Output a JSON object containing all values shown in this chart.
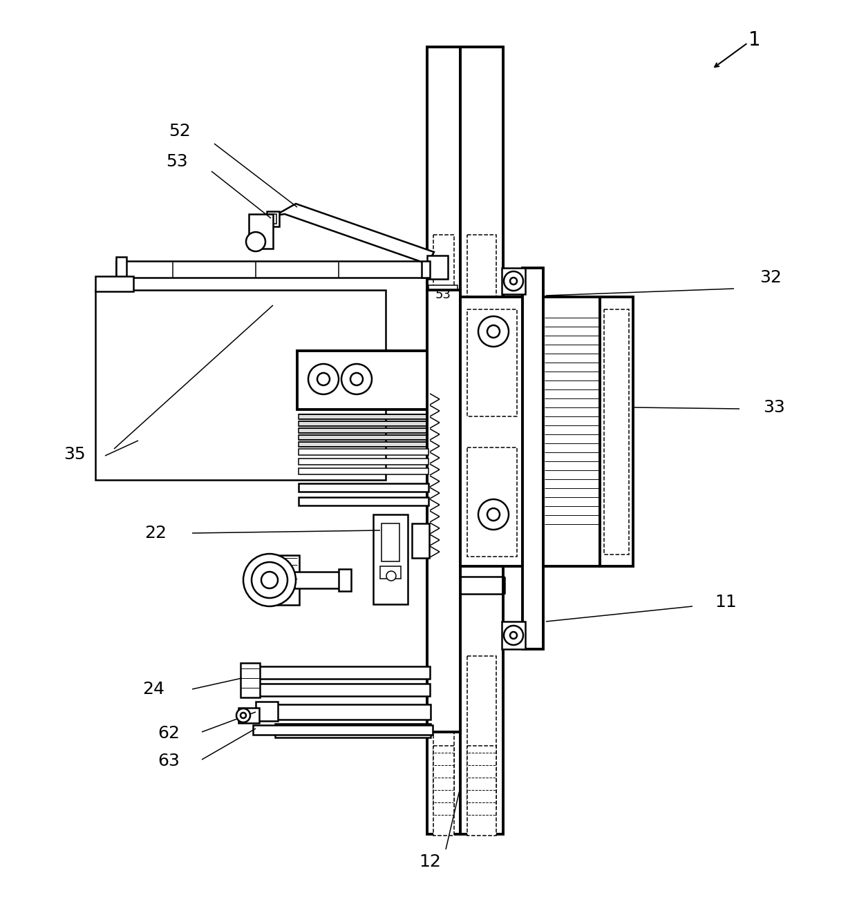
{
  "background_color": "#ffffff",
  "fig_width": 12.4,
  "fig_height": 13.12,
  "lw_heavy": 2.8,
  "lw_med": 1.8,
  "lw_light": 1.1,
  "lw_xlight": 0.7
}
